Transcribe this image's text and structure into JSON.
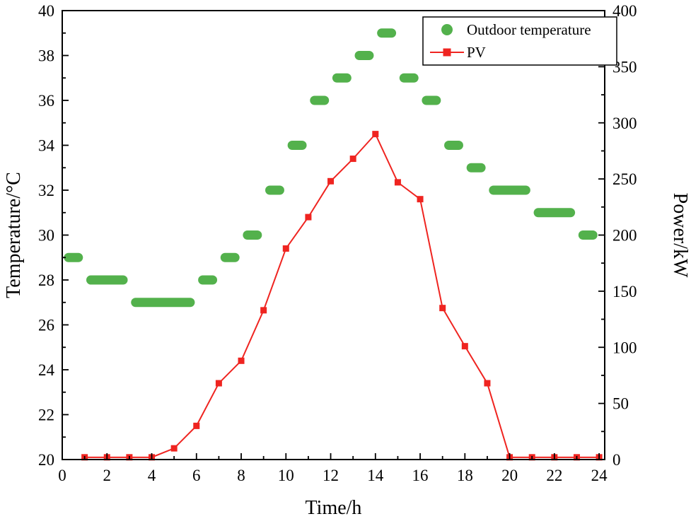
{
  "figure": {
    "background": "#ffffff",
    "ink_color": "#000000"
  },
  "chart_data": {
    "type": "line",
    "title": "",
    "xlabel": "Time/h",
    "ylabel_left": "Temperature/°C",
    "ylabel_right": "Power/kW",
    "xlim": [
      0,
      24.25
    ],
    "ylim_left": [
      20,
      40
    ],
    "ylim_right": [
      0,
      400
    ],
    "grid": false,
    "legend_position": "top-right",
    "x_major_ticks": [
      0,
      2,
      4,
      6,
      8,
      10,
      12,
      14,
      16,
      18,
      20,
      22,
      24
    ],
    "x_minor_ticks": [
      1,
      3,
      5,
      7,
      9,
      11,
      13,
      15,
      17,
      19,
      21,
      23
    ],
    "y_left_major_ticks": [
      20,
      22,
      24,
      26,
      28,
      30,
      32,
      34,
      36,
      38,
      40
    ],
    "y_left_minor_ticks": [
      21,
      23,
      25,
      27,
      29,
      31,
      33,
      35,
      37,
      39
    ],
    "y_right_major_ticks": [
      0,
      50,
      100,
      150,
      200,
      250,
      300,
      350,
      400
    ],
    "y_right_minor_ticks": [
      25,
      75,
      125,
      175,
      225,
      275,
      325,
      375
    ],
    "legend": [
      "Outdoor temperature",
      "PV"
    ],
    "series": [
      {
        "name": "Outdoor temperature",
        "axis": "left",
        "style": "step-segments",
        "marker": "circle",
        "color": "#53b14c",
        "hours": [
          0,
          1,
          2,
          3,
          4,
          5,
          6,
          7,
          8,
          9,
          10,
          11,
          12,
          13,
          14,
          15,
          16,
          17,
          18,
          19,
          20,
          21,
          22,
          23
        ],
        "values": [
          29,
          28,
          28,
          27,
          27,
          27,
          28,
          29,
          30,
          32,
          34,
          36,
          37,
          38,
          39,
          37,
          36,
          34,
          33,
          32,
          32,
          31,
          31,
          30
        ]
      },
      {
        "name": "PV",
        "axis": "right",
        "style": "line-with-markers",
        "marker": "square",
        "color": "#ef2420",
        "x": [
          1,
          2,
          3,
          4,
          5,
          6,
          7,
          8,
          9,
          10,
          11,
          12,
          13,
          14,
          15,
          16,
          17,
          18,
          19,
          20,
          21,
          22,
          23,
          24
        ],
        "values": [
          2,
          2,
          2,
          2,
          10,
          30,
          68,
          88,
          133,
          188,
          216,
          248,
          268,
          290,
          247,
          232,
          135,
          101,
          68,
          2,
          2,
          2,
          2,
          2
        ]
      }
    ]
  }
}
